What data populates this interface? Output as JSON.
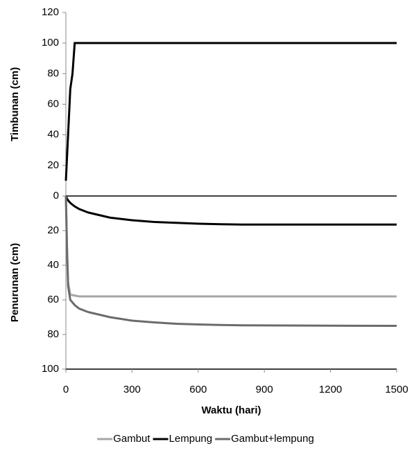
{
  "chart_data": [
    {
      "type": "line",
      "y_label": "Timbunan (cm)",
      "x": [
        0,
        10,
        20,
        30,
        40,
        1500
      ],
      "values": [
        10,
        40,
        70,
        80,
        100,
        100
      ],
      "color": "#000000",
      "xlim": [
        0,
        1500
      ],
      "ylim": [
        0,
        120
      ],
      "yticks": [
        20,
        40,
        60,
        80,
        100,
        120
      ]
    },
    {
      "type": "line",
      "y_label": "Penurunan (cm)",
      "x_label": "Waktu (hari)",
      "x": [
        0,
        5,
        10,
        20,
        40,
        60,
        100,
        150,
        200,
        300,
        400,
        500,
        600,
        700,
        800,
        1000,
        1200,
        1500
      ],
      "series": [
        {
          "name": "Gambut",
          "color": "#a6a6a6",
          "values": [
            0,
            30,
            50,
            57,
            57.5,
            58,
            58,
            58,
            58,
            58,
            58,
            58,
            58,
            58,
            58,
            58,
            58,
            58
          ]
        },
        {
          "name": "Lempung",
          "color": "#000000",
          "values": [
            0,
            1.5,
            2.5,
            4,
            6,
            7.5,
            9.5,
            11,
            12.5,
            14,
            15,
            15.5,
            16,
            16.3,
            16.5,
            16.5,
            16.5,
            16.5
          ]
        },
        {
          "name": "Gambut+lempung",
          "color": "#6b6b6b",
          "values": [
            0,
            30,
            52,
            60,
            63,
            65,
            67,
            68.5,
            70,
            72,
            73,
            73.8,
            74.2,
            74.5,
            74.7,
            74.8,
            74.9,
            75
          ]
        }
      ],
      "xlim": [
        0,
        1500
      ],
      "xticks": [
        0,
        300,
        600,
        900,
        1200,
        1500
      ],
      "ylim": [
        100,
        0
      ],
      "yticks": [
        0,
        20,
        40,
        60,
        80,
        100
      ],
      "legend": "bottom"
    }
  ]
}
